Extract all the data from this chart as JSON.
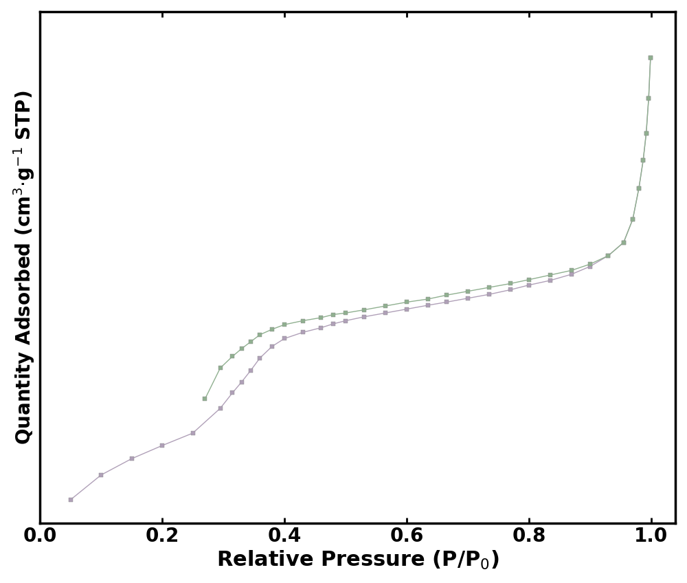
{
  "adsorption_x": [
    0.05,
    0.1,
    0.15,
    0.2,
    0.25,
    0.295,
    0.315,
    0.33,
    0.345,
    0.36,
    0.38,
    0.4,
    0.43,
    0.46,
    0.48,
    0.5,
    0.53,
    0.565,
    0.6,
    0.635,
    0.665,
    0.7,
    0.735,
    0.77,
    0.8,
    0.835,
    0.87,
    0.9,
    0.93,
    0.955,
    0.97,
    0.98,
    0.987,
    0.992,
    0.996,
    0.999
  ],
  "adsorption_y": [
    30,
    62,
    83,
    100,
    116,
    148,
    168,
    182,
    197,
    213,
    228,
    238,
    246,
    252,
    257,
    261,
    266,
    271,
    276,
    281,
    285,
    290,
    295,
    301,
    307,
    313,
    321,
    331,
    345,
    362,
    392,
    432,
    468,
    503,
    548,
    600
  ],
  "desorption_x": [
    0.999,
    0.996,
    0.992,
    0.987,
    0.98,
    0.97,
    0.955,
    0.93,
    0.9,
    0.87,
    0.835,
    0.8,
    0.77,
    0.735,
    0.7,
    0.665,
    0.635,
    0.6,
    0.565,
    0.53,
    0.5,
    0.48,
    0.46,
    0.43,
    0.4,
    0.38,
    0.36,
    0.345,
    0.33,
    0.315,
    0.295,
    0.27
  ],
  "desorption_y": [
    600,
    548,
    503,
    468,
    432,
    392,
    362,
    345,
    334,
    326,
    320,
    314,
    309,
    304,
    299,
    294,
    289,
    285,
    280,
    275,
    271,
    269,
    265,
    261,
    256,
    250,
    243,
    234,
    225,
    215,
    200,
    160
  ],
  "adsorption_color": "#b0a0b8",
  "desorption_color": "#90b090",
  "marker": "s",
  "markersize": 5,
  "markeredgewidth": 0.3,
  "linewidth": 1.0,
  "xlabel": "Relative Pressure (P/P$_0$)",
  "ylabel": "Quantity Adsorbed (cm$^3$$\\cdot$g$^{-1}$ STP)",
  "xlim": [
    0.0,
    1.04
  ],
  "ylim": [
    0,
    660
  ],
  "xticks": [
    0.0,
    0.2,
    0.4,
    0.6,
    0.8,
    1.0
  ],
  "xlabel_fontsize": 22,
  "ylabel_fontsize": 20,
  "tick_fontsize": 20,
  "tick_fontweight": "bold",
  "label_fontweight": "bold",
  "spine_linewidth": 2.5,
  "background_color": "#ffffff",
  "figure_background": "#ffffff"
}
